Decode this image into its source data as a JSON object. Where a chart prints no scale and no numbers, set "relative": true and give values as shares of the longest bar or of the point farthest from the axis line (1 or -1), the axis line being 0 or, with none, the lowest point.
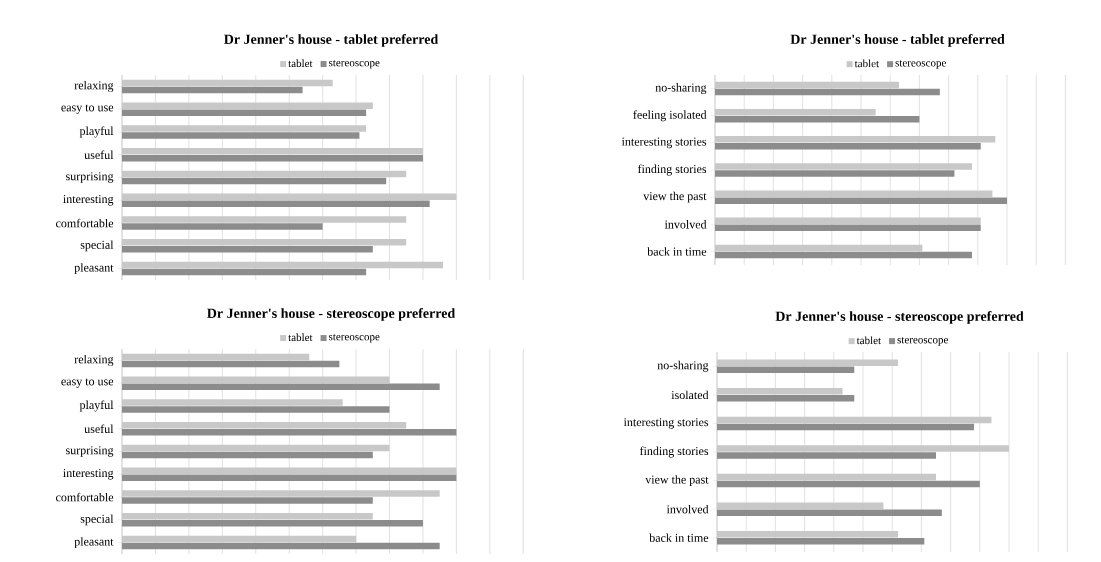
{
  "chart_data": [
    {
      "type": "bar",
      "orientation": "horizontal",
      "relative": true,
      "legend": "top",
      "grid": "x",
      "title": "Dr Jenner's house - tablet preferred",
      "categories": [
        "relaxing",
        "easy to use",
        "playful",
        "useful",
        "surprising",
        "interesting",
        "comfortable",
        "special",
        "pleasant"
      ],
      "series": [
        {
          "name": "tablet",
          "color": "#c8c8c8",
          "values": [
            0.63,
            0.75,
            0.73,
            0.9,
            0.85,
            1,
            0.85,
            0.85,
            0.96
          ]
        },
        {
          "name": "stereoscope",
          "color": "#8c8c8c",
          "values": [
            0.54,
            0.73,
            0.71,
            0.9,
            0.79,
            0.92,
            0.6,
            0.75,
            0.73
          ]
        }
      ]
    },
    {
      "type": "bar",
      "orientation": "horizontal",
      "relative": true,
      "legend": "top",
      "grid": "x",
      "title": "Dr Jenner's house - tablet preferred",
      "categories": [
        "no-sharing",
        "feeling isolated",
        "interesting stories",
        "finding stories",
        "view the past",
        "involved",
        "back in time"
      ],
      "series": [
        {
          "name": "tablet",
          "color": "#c8c8c8",
          "values": [
            0.63,
            0.55,
            0.96,
            0.88,
            0.95,
            0.91,
            0.71
          ]
        },
        {
          "name": "stereoscope",
          "color": "#8c8c8c",
          "values": [
            0.77,
            0.7,
            0.91,
            0.82,
            1,
            0.91,
            0.88
          ]
        }
      ]
    },
    {
      "type": "bar",
      "orientation": "horizontal",
      "relative": true,
      "legend": "top",
      "grid": "x",
      "title": "Dr Jenner's house - stereoscope preferred",
      "categories": [
        "relaxing",
        "easy to use",
        "playful",
        "useful",
        "surprising",
        "interesting",
        "comfortable",
        "special",
        "pleasant"
      ],
      "series": [
        {
          "name": "tablet",
          "color": "#c8c8c8",
          "values": [
            0.56,
            0.8,
            0.66,
            0.85,
            0.8,
            1,
            0.95,
            0.75,
            0.7
          ]
        },
        {
          "name": "stereoscope",
          "color": "#8c8c8c",
          "values": [
            0.65,
            0.95,
            0.8,
            1,
            0.75,
            1,
            0.75,
            0.9,
            0.95
          ]
        }
      ]
    },
    {
      "type": "bar",
      "orientation": "horizontal",
      "relative": true,
      "legend": "top",
      "grid": "x",
      "title": "Dr Jenner's house - stereoscope preferred",
      "categories": [
        "no-sharing",
        "isolated",
        "interesting stories",
        "finding stories",
        "view the past",
        "involved",
        "back in time"
      ],
      "series": [
        {
          "name": "tablet",
          "color": "#c8c8c8",
          "values": [
            0.62,
            0.43,
            0.94,
            1,
            0.75,
            0.57,
            0.62
          ]
        },
        {
          "name": "stereoscope",
          "color": "#8c8c8c",
          "values": [
            0.47,
            0.47,
            0.88,
            0.75,
            0.9,
            0.77,
            0.71
          ]
        }
      ]
    }
  ]
}
